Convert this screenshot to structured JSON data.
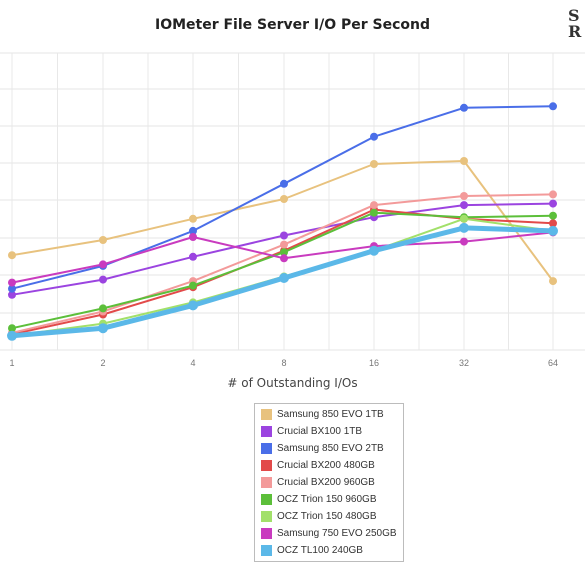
{
  "chart_data": {
    "type": "line",
    "title": "IOMeter File Server I/O Per Second",
    "xlabel": "# of Outstanding I/Os",
    "ylabel": "",
    "x": [
      "1",
      "2",
      "4",
      "8",
      "16",
      "32",
      "64"
    ],
    "grid": true,
    "legend_position": "bottom",
    "series": [
      {
        "name": "Samsung 850 EVO 1TB",
        "color": "#e8c27e",
        "values": [
          0.63,
          0.73,
          0.87,
          1.0,
          1.23,
          1.25,
          0.46
        ]
      },
      {
        "name": "Crucial BX100 1TB",
        "color": "#9b44e0",
        "values": [
          0.37,
          0.47,
          0.62,
          0.76,
          0.88,
          0.96,
          0.97
        ]
      },
      {
        "name": "Samsung 850 EVO 2TB",
        "color": "#4a6ee8",
        "values": [
          0.41,
          0.56,
          0.79,
          1.1,
          1.41,
          1.6,
          1.61
        ]
      },
      {
        "name": "Crucial BX200 480GB",
        "color": "#e24a4a",
        "values": [
          0.11,
          0.24,
          0.42,
          0.66,
          0.93,
          0.87,
          0.84
        ]
      },
      {
        "name": "Crucial BX200 960GB",
        "color": "#f39a9a",
        "values": [
          0.12,
          0.26,
          0.46,
          0.7,
          0.96,
          1.02,
          1.03
        ]
      },
      {
        "name": "OCZ Trion 150 960GB",
        "color": "#5cbf3a",
        "values": [
          0.15,
          0.28,
          0.43,
          0.65,
          0.91,
          0.88,
          0.89
        ]
      },
      {
        "name": "OCZ Trion 150 480GB",
        "color": "#a2e06a",
        "values": [
          0.1,
          0.18,
          0.32,
          0.49,
          0.66,
          0.87,
          0.79
        ]
      },
      {
        "name": "Samsung 750 EVO 250GB",
        "color": "#c93bbf",
        "values": [
          0.45,
          0.57,
          0.75,
          0.61,
          0.69,
          0.72,
          0.78
        ]
      },
      {
        "name": "OCZ TL100 240GB",
        "color": "#5bb8e8",
        "values": [
          0.1,
          0.15,
          0.3,
          0.48,
          0.66,
          0.81,
          0.79
        ]
      }
    ]
  },
  "logo": {
    "text": "SSR"
  }
}
